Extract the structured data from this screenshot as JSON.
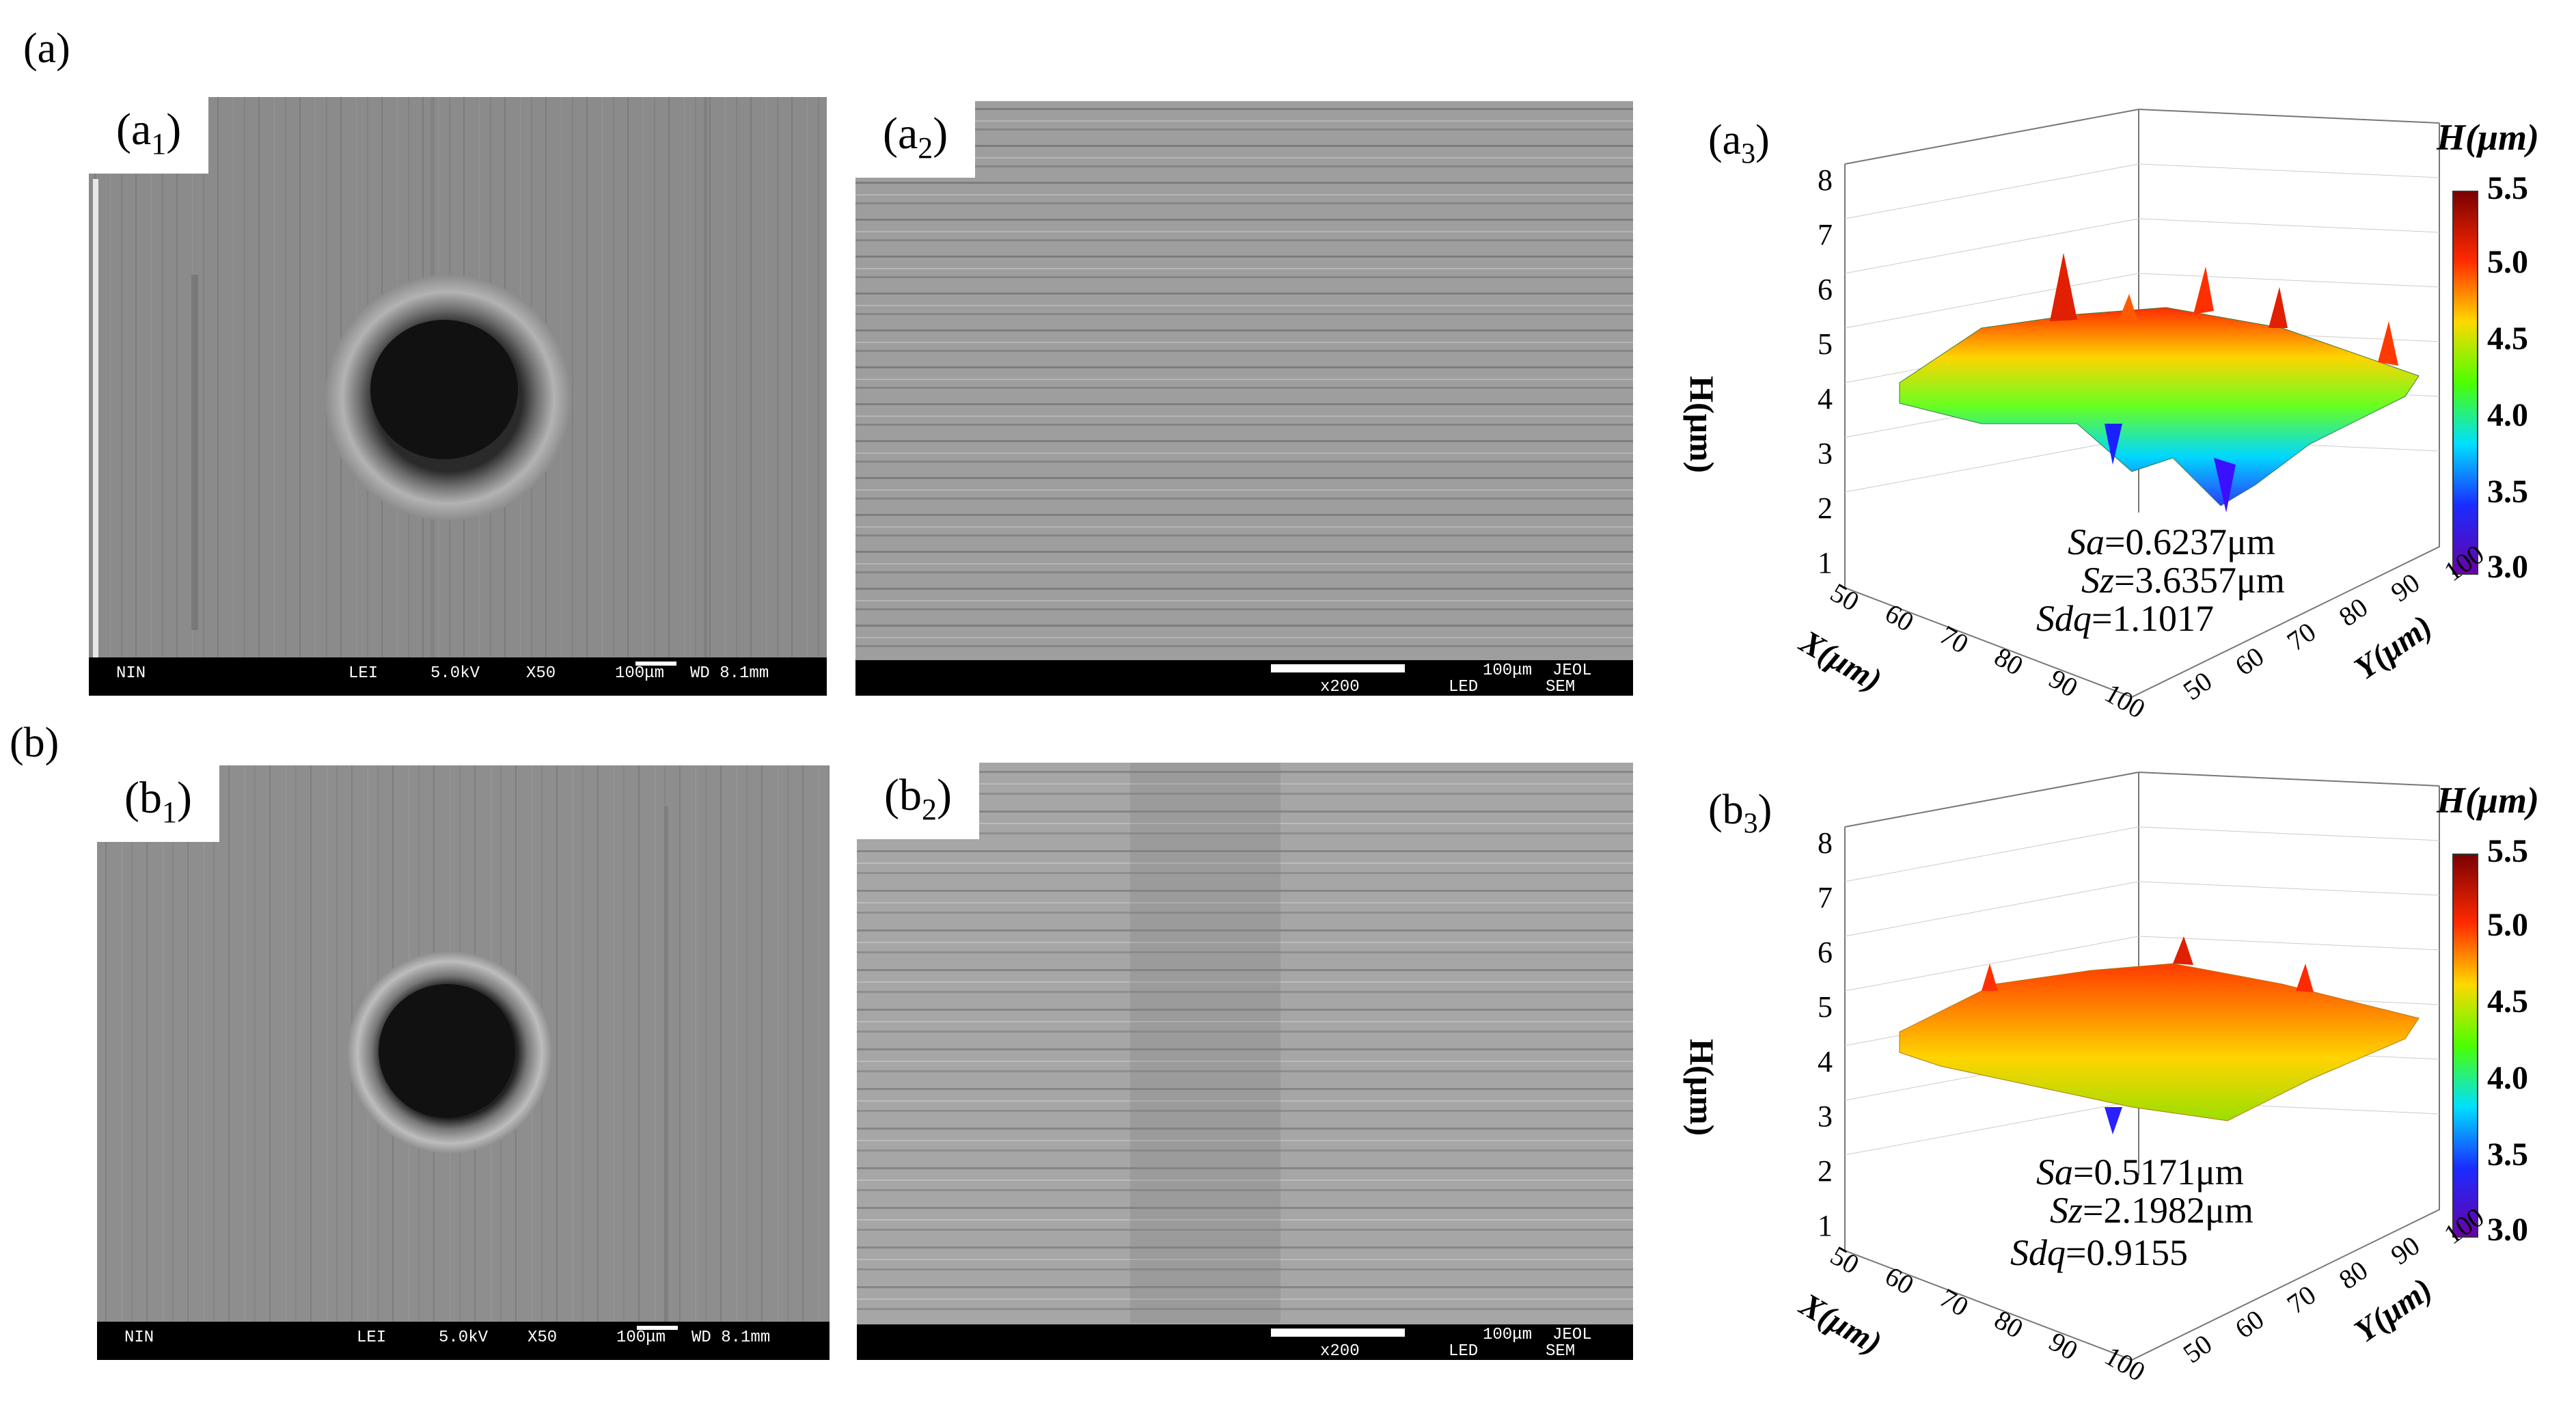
{
  "figure": {
    "rows": [
      {
        "label": "(a)",
        "sem_low_mag": {
          "label_main": "(a",
          "label_sub": "1",
          "label_end": ")",
          "databar": {
            "detector_id": "NIN",
            "mode": "LEI",
            "kv": "5.0kV",
            "mag": "X50",
            "scale": "100μm",
            "wd": "WD 8.1mm"
          }
        },
        "sem_high_mag": {
          "label_main": "(a",
          "label_sub": "2",
          "label_end": ")",
          "databar": {
            "scale": "100μm",
            "brand": "JEOL",
            "mag": "x200",
            "mode": "LED",
            "type": "SEM"
          }
        },
        "surface_3d": {
          "label_main": "(a",
          "label_sub": "3",
          "label_end": ")",
          "colorbar_title": "H(μm)",
          "colorbar_ticks": [
            "5.5",
            "5.0",
            "4.5",
            "4.0",
            "3.5",
            "3.0"
          ],
          "z_axis_label": "H(μm)",
          "z_ticks": [
            "8",
            "7",
            "6",
            "5",
            "4",
            "3",
            "2",
            "1"
          ],
          "x_axis_label": "X(μm)",
          "x_ticks": [
            "50",
            "60",
            "70",
            "80",
            "90",
            "100"
          ],
          "y_axis_label": "Y(μm)",
          "y_ticks": [
            "100",
            "90",
            "80",
            "70",
            "60",
            "50"
          ],
          "stats": [
            {
              "name": "Sa",
              "value": "=0.6237μm"
            },
            {
              "name": "Sz",
              "value": "=3.6357μm"
            },
            {
              "name": "Sdq",
              "value": "=1.1017"
            }
          ]
        }
      },
      {
        "label": "(b)",
        "sem_low_mag": {
          "label_main": "(b",
          "label_sub": "1",
          "label_end": ")",
          "databar": {
            "detector_id": "NIN",
            "mode": "LEI",
            "kv": "5.0kV",
            "mag": "X50",
            "scale": "100μm",
            "wd": "WD 8.1mm"
          }
        },
        "sem_high_mag": {
          "label_main": "(b",
          "label_sub": "2",
          "label_end": ")",
          "databar": {
            "scale": "100μm",
            "brand": "JEOL",
            "mag": "x200",
            "mode": "LED",
            "type": "SEM"
          }
        },
        "surface_3d": {
          "label_main": "(b",
          "label_sub": "3",
          "label_end": ")",
          "colorbar_title": "H(μm)",
          "colorbar_ticks": [
            "5.5",
            "5.0",
            "4.5",
            "4.0",
            "3.5",
            "3.0"
          ],
          "z_axis_label": "H(μm)",
          "z_ticks": [
            "8",
            "7",
            "6",
            "5",
            "4",
            "3",
            "2",
            "1"
          ],
          "x_axis_label": "X(μm)",
          "x_ticks": [
            "50",
            "60",
            "70",
            "80",
            "90",
            "100"
          ],
          "y_axis_label": "Y(μm)",
          "y_ticks": [
            "100",
            "90",
            "80",
            "70",
            "60",
            "50"
          ],
          "stats": [
            {
              "name": "Sa",
              "value": "=0.5171μm"
            },
            {
              "name": "Sz",
              "value": "=2.1982μm"
            },
            {
              "name": "Sdq",
              "value": "=0.9155"
            }
          ]
        }
      }
    ]
  }
}
